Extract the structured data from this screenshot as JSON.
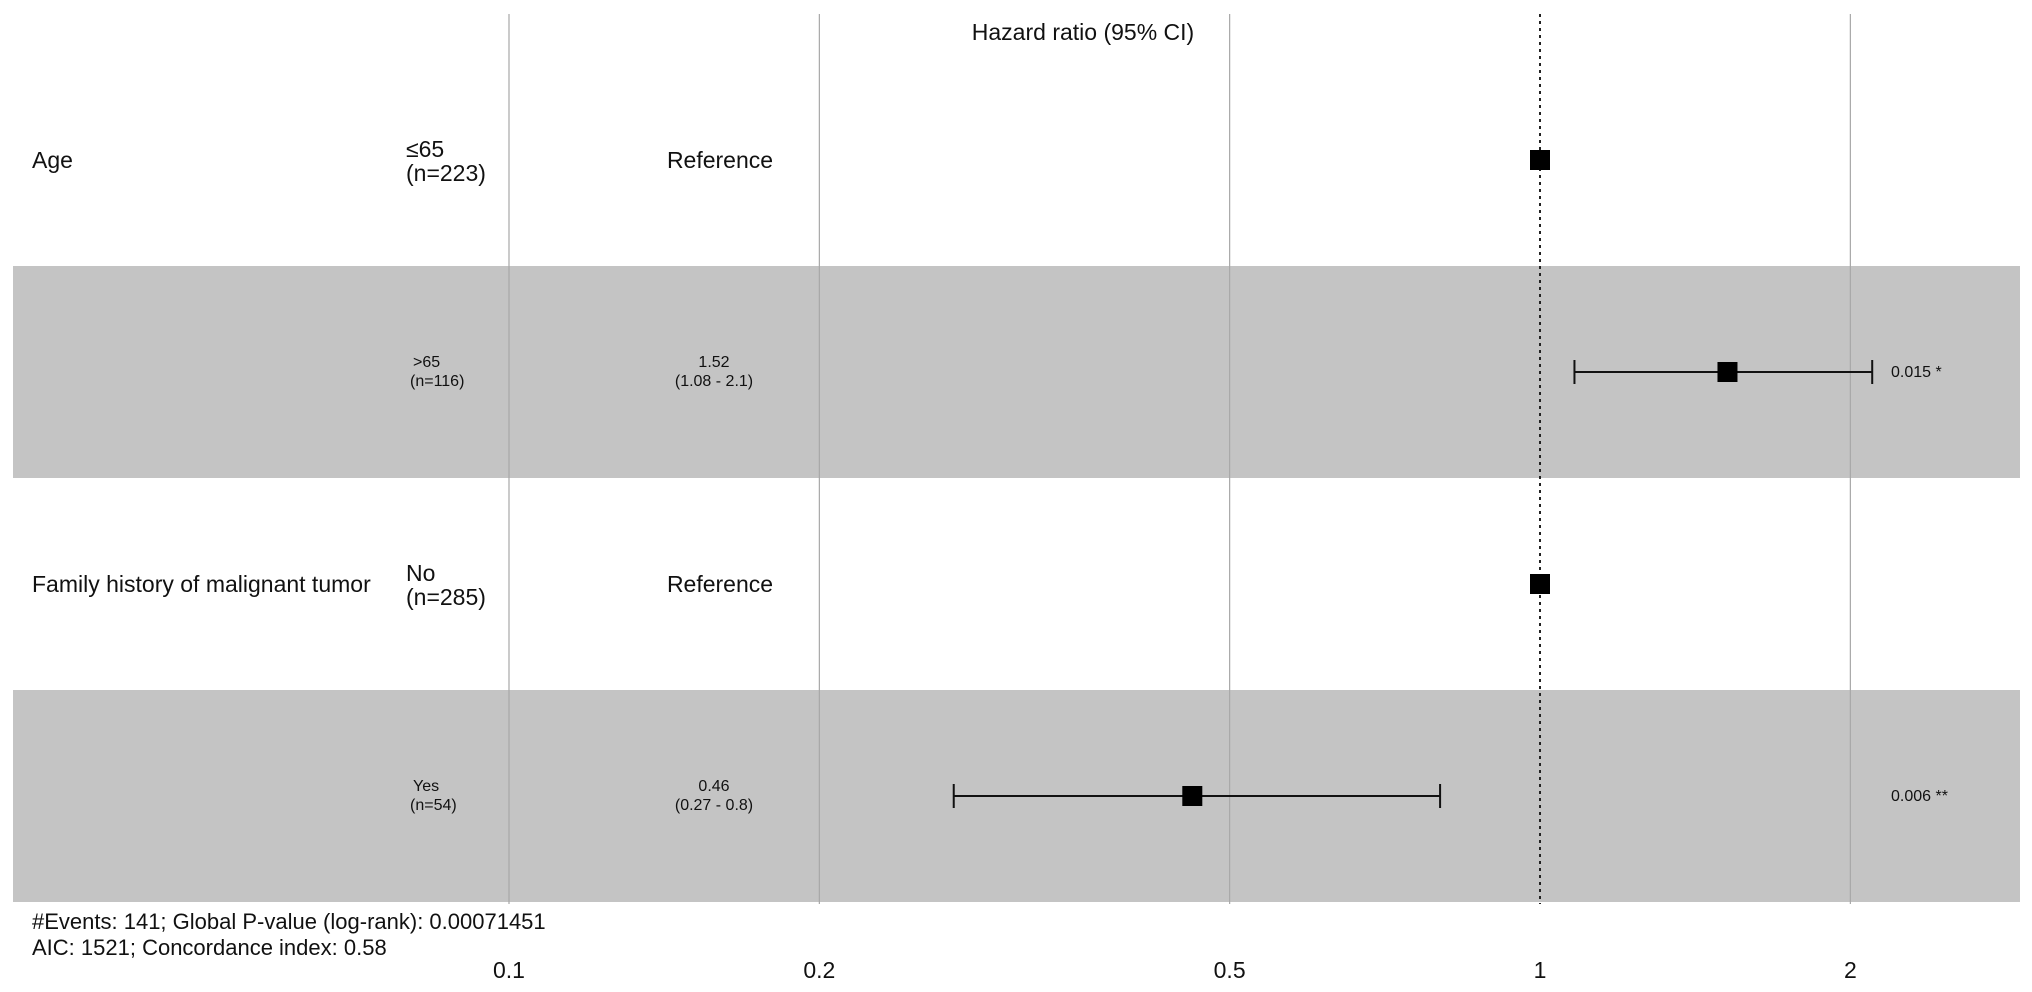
{
  "chart_data": {
    "type": "forest",
    "title": "Hazard ratio (95% CI)",
    "x_scale": "log",
    "x_reference": 1,
    "xlim": [
      0.085,
      2.9
    ],
    "x_ticks": [
      0.1,
      0.2,
      0.5,
      1,
      2
    ],
    "x_tick_labels": [
      "0.1",
      "0.2",
      "0.5",
      "1",
      "2"
    ],
    "rows": [
      {
        "variable": "Age",
        "level": "≤65",
        "n": "(n=223)",
        "estimate_label": "Reference",
        "ci_label": "",
        "hr": 1,
        "lower": null,
        "upper": null,
        "p_label": "",
        "shaded": false,
        "size": "big"
      },
      {
        "variable": "",
        "level": ">65",
        "n": "(n=116)",
        "estimate_label": "1.52",
        "ci_label": "(1.08 - 2.1)",
        "hr": 1.52,
        "lower": 1.08,
        "upper": 2.1,
        "p_label": "0.015 *",
        "shaded": true,
        "size": "small"
      },
      {
        "variable": "Family history of malignant tumor",
        "level": "No",
        "n": "(n=285)",
        "estimate_label": "Reference",
        "ci_label": "",
        "hr": 1,
        "lower": null,
        "upper": null,
        "p_label": "",
        "shaded": false,
        "size": "big"
      },
      {
        "variable": "",
        "level": "Yes",
        "n": "(n=54)",
        "estimate_label": "0.46",
        "ci_label": "(0.27 - 0.8)",
        "hr": 0.46,
        "lower": 0.27,
        "upper": 0.8,
        "p_label": "0.006 **",
        "shaded": true,
        "size": "small"
      }
    ],
    "footer": [
      "#Events: 141; Global P-value (log-rank): 0.00071451",
      "AIC: 1521; Concordance index: 0.58"
    ],
    "colors": {
      "shade": "#c4c4c4",
      "grid": "#a8a8a8",
      "marker": "#000000"
    }
  }
}
